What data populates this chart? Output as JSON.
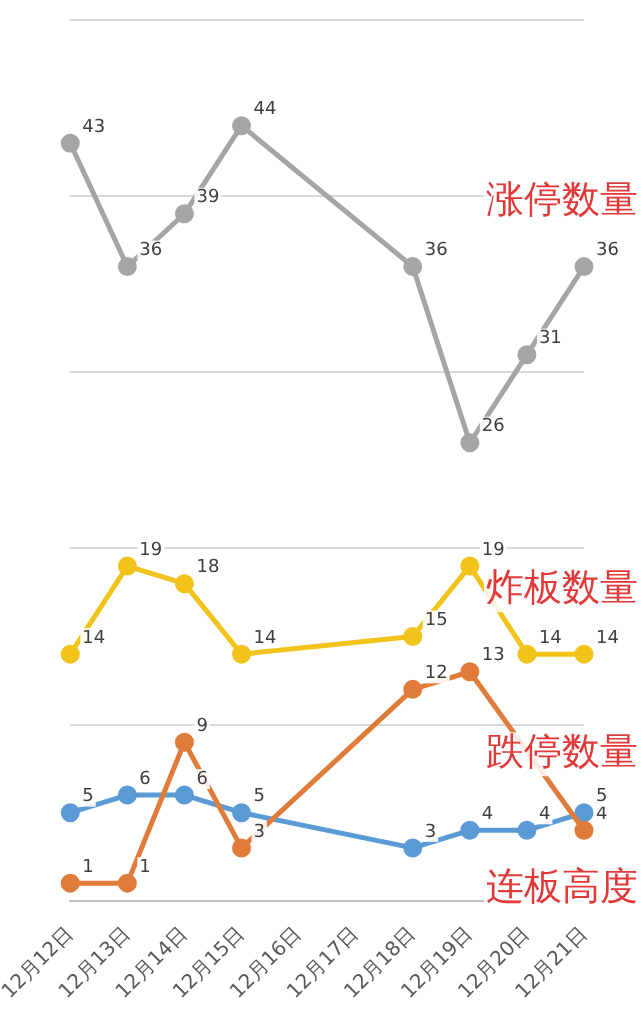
{
  "chart_data": {
    "type": "line",
    "categories": [
      "12月12日",
      "12月13日",
      "12月14日",
      "12月15日",
      "12月16日",
      "12月17日",
      "12月18日",
      "12月19日",
      "12月20日",
      "12月21日"
    ],
    "series": [
      {
        "name": "涨停数量",
        "color": "#a5a5a5",
        "values": [
          43,
          36,
          39,
          44,
          null,
          null,
          36,
          26,
          31,
          36
        ]
      },
      {
        "name": "炸板数量",
        "color": "#f2c31a",
        "values": [
          14,
          19,
          18,
          14,
          null,
          null,
          15,
          19,
          14,
          14
        ]
      },
      {
        "name": "跌停数量",
        "color": "#e07b39",
        "values": [
          1,
          1,
          9,
          3,
          null,
          null,
          12,
          13,
          null,
          4
        ]
      },
      {
        "name": "连板高度",
        "color": "#5b9bd5",
        "values": [
          5,
          6,
          6,
          5,
          null,
          null,
          3,
          4,
          4,
          5
        ]
      }
    ],
    "ylim": [
      0,
      50
    ],
    "yticks": [
      {
        "value": 0,
        "label": null
      },
      {
        "value": 10,
        "label": null
      },
      {
        "value": 20,
        "label": null
      },
      {
        "value": 30,
        "label": null
      },
      {
        "value": 40,
        "label": null
      },
      {
        "value": 50,
        "label": null
      }
    ],
    "tick_labels": "x",
    "grid": "y",
    "legend": false,
    "marker": "circle",
    "line_style": "solid",
    "data_labels": true
  }
}
